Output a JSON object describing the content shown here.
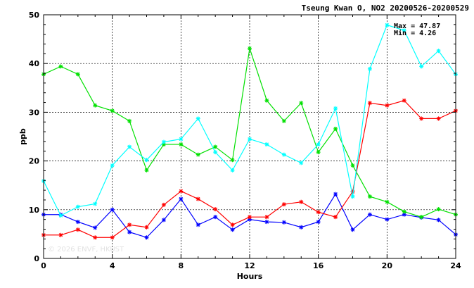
{
  "chart_data": {
    "type": "line",
    "title": "Tseung Kwan O, NO2 20200526-20200529",
    "xlabel": "Hours",
    "ylabel": "ppb",
    "xlim": [
      0,
      24
    ],
    "ylim": [
      0,
      50
    ],
    "xticks": [
      0,
      4,
      8,
      12,
      16,
      20,
      24
    ],
    "yticks": [
      0,
      10,
      20,
      30,
      40,
      50
    ],
    "grid": true,
    "stats": {
      "max": "Max = 47.87",
      "min": "Min =  4.26"
    },
    "watermark": "© 2026 ENVF, HKUST",
    "x": [
      0,
      1,
      2,
      3,
      4,
      5,
      6,
      7,
      8,
      9,
      10,
      11,
      12,
      13,
      14,
      15,
      16,
      17,
      18,
      19,
      20,
      21,
      22,
      23,
      24
    ],
    "series": [
      {
        "color": "#0000ff",
        "values": [
          9.0,
          9.0,
          7.5,
          6.3,
          10.0,
          5.4,
          4.3,
          7.9,
          12.2,
          6.9,
          8.5,
          5.9,
          8.0,
          7.5,
          7.4,
          6.4,
          7.5,
          13.2,
          5.9,
          9.0,
          8.0,
          9.0,
          8.4,
          7.9,
          4.9
        ]
      },
      {
        "color": "#ff0000",
        "values": [
          4.8,
          4.8,
          5.9,
          4.3,
          4.3,
          6.9,
          6.4,
          11.0,
          13.8,
          12.2,
          10.1,
          6.9,
          8.5,
          8.5,
          11.1,
          11.6,
          9.5,
          8.5,
          13.7,
          31.9,
          31.4,
          32.4,
          28.7,
          28.7,
          30.3
        ]
      },
      {
        "color": "#00e000",
        "values": [
          37.8,
          39.4,
          37.8,
          31.4,
          30.3,
          28.2,
          18.1,
          23.4,
          23.4,
          21.3,
          22.9,
          20.2,
          43.1,
          32.4,
          28.2,
          31.9,
          21.8,
          26.6,
          19.1,
          12.7,
          11.6,
          9.6,
          8.5,
          10.1,
          9.0
        ]
      },
      {
        "color": "#00ffff",
        "values": [
          15.9,
          8.8,
          10.6,
          11.2,
          19.1,
          22.9,
          20.2,
          23.9,
          24.5,
          28.7,
          21.8,
          18.1,
          24.5,
          23.4,
          21.3,
          19.6,
          23.4,
          30.8,
          12.7,
          38.9,
          47.9,
          46.8,
          39.4,
          42.6,
          37.8
        ]
      }
    ]
  }
}
